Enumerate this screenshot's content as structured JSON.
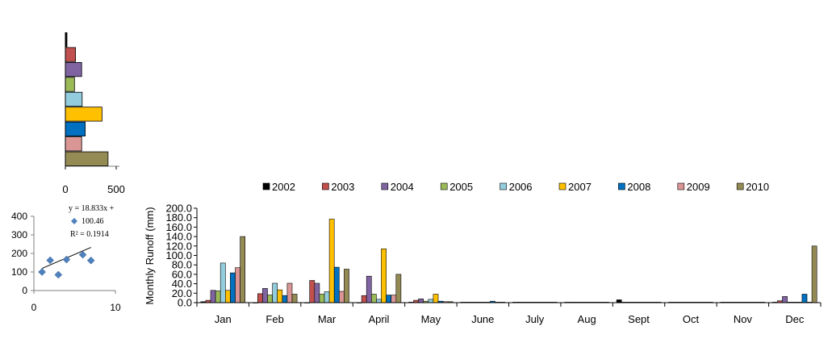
{
  "chart_data": [
    {
      "type": "bar",
      "orientation": "horizontal",
      "categories": [
        "2002",
        "2003",
        "2004",
        "2005",
        "2006",
        "2007",
        "2008",
        "2009",
        "2010"
      ],
      "values": [
        10,
        100,
        160,
        90,
        165,
        360,
        195,
        160,
        420
      ],
      "colors": [
        "#000000",
        "#c0504d",
        "#8064a2",
        "#9bbb59",
        "#93cddd",
        "#ffc000",
        "#0070c0",
        "#d99694",
        "#948a54"
      ],
      "xlim": [
        0,
        500
      ],
      "xticks": [
        "0",
        "500"
      ],
      "grid": false
    },
    {
      "type": "scatter",
      "points": [
        {
          "x": 1,
          "y": 100
        },
        {
          "x": 2,
          "y": 163
        },
        {
          "x": 3,
          "y": 85
        },
        {
          "x": 4,
          "y": 167
        },
        {
          "x": 6,
          "y": 193
        },
        {
          "x": 7,
          "y": 162
        }
      ],
      "trendline": {
        "slope": 18.833,
        "intercept": 100.46,
        "x_range": [
          1,
          7
        ]
      },
      "annotation": [
        "y = 18.833x +",
        "100.46",
        "R² = 0.1914"
      ],
      "xlim": [
        0,
        10
      ],
      "ylim": [
        0,
        400
      ],
      "xticks": [
        "0",
        "10"
      ],
      "yticks": [
        "0",
        "100",
        "200",
        "300",
        "400"
      ],
      "marker_color": "#4f81bd",
      "grid": false
    },
    {
      "type": "bar",
      "categories": [
        "Jan",
        "Feb",
        "Mar",
        "April",
        "May",
        "June",
        "July",
        "Aug",
        "Sept",
        "Oct",
        "Nov",
        "Dec"
      ],
      "ylabel": "Monthly  Runoff (mm)",
      "ylim": [
        0,
        200
      ],
      "yticks": [
        "0.0",
        "20.0",
        "40.0",
        "60.0",
        "80.0",
        "100.0",
        "120.0",
        "140.0",
        "160.0",
        "180.0",
        "200.0"
      ],
      "legend_position": "top",
      "grid": false,
      "series": [
        {
          "name": "2002",
          "color": "#000000",
          "values": [
            2,
            0,
            0,
            0,
            1,
            1,
            1,
            1,
            6,
            1,
            1,
            1
          ]
        },
        {
          "name": "2003",
          "color": "#c0504d",
          "values": [
            5,
            19,
            47,
            15,
            5,
            1,
            1,
            1,
            1,
            1,
            1,
            4
          ]
        },
        {
          "name": "2004",
          "color": "#8064a2",
          "values": [
            26,
            30,
            41,
            56,
            8,
            1,
            1,
            1,
            1,
            1,
            1,
            13
          ]
        },
        {
          "name": "2005",
          "color": "#9bbb59",
          "values": [
            25,
            16,
            18,
            18,
            3,
            1,
            1,
            1,
            1,
            1,
            1,
            1
          ]
        },
        {
          "name": "2006",
          "color": "#93cddd",
          "values": [
            84,
            41,
            23,
            7,
            7,
            1,
            1,
            1,
            1,
            1,
            1,
            1
          ]
        },
        {
          "name": "2007",
          "color": "#ffc000",
          "values": [
            26,
            27,
            177,
            114,
            18,
            1,
            1,
            1,
            1,
            1,
            1,
            1
          ]
        },
        {
          "name": "2008",
          "color": "#0070c0",
          "values": [
            63,
            15,
            75,
            16,
            3,
            3,
            1,
            1,
            1,
            1,
            1,
            18
          ]
        },
        {
          "name": "2009",
          "color": "#d99694",
          "values": [
            74,
            41,
            24,
            16,
            2,
            1,
            1,
            1,
            1,
            1,
            1,
            1
          ]
        },
        {
          "name": "2010",
          "color": "#948a54",
          "values": [
            140,
            18,
            71,
            60,
            2,
            1,
            1,
            1,
            1,
            1,
            1,
            120
          ]
        }
      ]
    }
  ]
}
